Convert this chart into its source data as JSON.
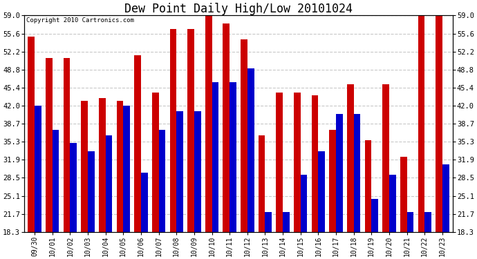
{
  "title": "Dew Point Daily High/Low 20101024",
  "copyright": "Copyright 2010 Cartronics.com",
  "categories": [
    "09/30",
    "10/01",
    "10/02",
    "10/03",
    "10/04",
    "10/05",
    "10/06",
    "10/07",
    "10/08",
    "10/09",
    "10/10",
    "10/11",
    "10/12",
    "10/13",
    "10/14",
    "10/15",
    "10/16",
    "10/17",
    "10/18",
    "10/19",
    "10/20",
    "10/21",
    "10/22",
    "10/23"
  ],
  "highs": [
    55.0,
    51.0,
    51.0,
    43.0,
    43.5,
    43.0,
    51.5,
    44.5,
    56.5,
    56.5,
    59.0,
    57.5,
    54.5,
    36.5,
    44.5,
    44.5,
    44.0,
    37.5,
    46.0,
    35.5,
    46.0,
    32.5,
    59.0,
    59.0
  ],
  "lows": [
    42.0,
    37.5,
    35.0,
    33.5,
    36.5,
    42.0,
    29.5,
    37.5,
    41.0,
    41.0,
    46.5,
    46.5,
    49.0,
    22.0,
    22.0,
    29.0,
    33.5,
    40.5,
    40.5,
    24.5,
    29.0,
    22.0,
    22.0,
    31.0
  ],
  "high_color": "#cc0000",
  "low_color": "#0000cc",
  "background_color": "#ffffff",
  "grid_color": "#c8c8c8",
  "ylim_min": 18.3,
  "ylim_max": 59.0,
  "yticks": [
    18.3,
    21.7,
    25.1,
    28.5,
    31.9,
    35.3,
    38.7,
    42.0,
    45.4,
    48.8,
    52.2,
    55.6,
    59.0
  ],
  "bar_width": 0.38,
  "title_fontsize": 12,
  "tick_fontsize": 7.5,
  "x_tick_fontsize": 7
}
